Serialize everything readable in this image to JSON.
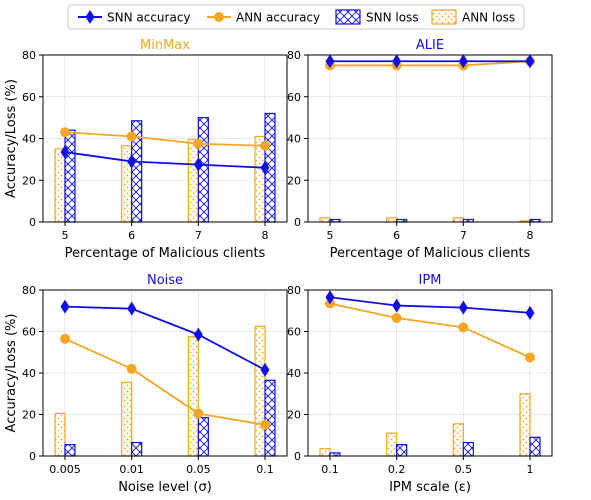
{
  "legend": {
    "snn_accuracy": "SNN accuracy",
    "ann_accuracy": "ANN accuracy",
    "snn_loss": "SNN loss",
    "ann_loss": "ANN loss"
  },
  "colors": {
    "snn": "#1010e6",
    "ann": "#f5a623"
  },
  "chart_data": [
    {
      "type": "bar",
      "title": "MinMax",
      "title_color": "#f5a623",
      "xlabel": "Percentage of Malicious clients",
      "ylabel": "Accuracy/Loss (%)",
      "categories": [
        "5",
        "6",
        "7",
        "8"
      ],
      "ylim": [
        0,
        80
      ],
      "yticks": [
        0,
        20,
        40,
        60,
        80
      ],
      "grid": true,
      "series": [
        {
          "name": "SNN accuracy",
          "kind": "line",
          "values": [
            33.5,
            29,
            27.5,
            26
          ]
        },
        {
          "name": "ANN accuracy",
          "kind": "line",
          "values": [
            43,
            41,
            37.5,
            36.5
          ]
        },
        {
          "name": "SNN loss",
          "kind": "bar",
          "values": [
            44,
            48.5,
            50,
            52
          ]
        },
        {
          "name": "ANN loss",
          "kind": "bar",
          "values": [
            35,
            36.5,
            39.5,
            41
          ]
        }
      ]
    },
    {
      "type": "bar",
      "title": "ALIE",
      "title_color": "#1010e6",
      "xlabel": "Percentage of Malicious clients",
      "ylabel": "",
      "categories": [
        "5",
        "6",
        "7",
        "8"
      ],
      "ylim": [
        0,
        80
      ],
      "yticks": [
        0,
        20,
        40,
        60,
        80
      ],
      "grid": true,
      "series": [
        {
          "name": "SNN accuracy",
          "kind": "line",
          "values": [
            77,
            77,
            77,
            77
          ]
        },
        {
          "name": "ANN accuracy",
          "kind": "line",
          "values": [
            75,
            75,
            75,
            77
          ]
        },
        {
          "name": "SNN loss",
          "kind": "bar",
          "values": [
            1.2,
            1.2,
            1.2,
            1.2
          ]
        },
        {
          "name": "ANN loss",
          "kind": "bar",
          "values": [
            2,
            2,
            2,
            0.5
          ]
        }
      ]
    },
    {
      "type": "bar",
      "title": "Noise",
      "title_color": "#1010e6",
      "xlabel": "Noise level (σ)",
      "ylabel": "Accuracy/Loss (%)",
      "categories": [
        "0.005",
        "0.01",
        "0.05",
        "0.1"
      ],
      "ylim": [
        0,
        80
      ],
      "yticks": [
        0,
        20,
        40,
        60,
        80
      ],
      "grid": true,
      "series": [
        {
          "name": "SNN accuracy",
          "kind": "line",
          "values": [
            72,
            71,
            58.5,
            41.5
          ]
        },
        {
          "name": "ANN accuracy",
          "kind": "line",
          "values": [
            56.5,
            42,
            20.5,
            15
          ]
        },
        {
          "name": "SNN loss",
          "kind": "bar",
          "values": [
            5.5,
            6.5,
            18.5,
            36.5
          ]
        },
        {
          "name": "ANN loss",
          "kind": "bar",
          "values": [
            20.5,
            35.5,
            57.5,
            62.5
          ]
        }
      ]
    },
    {
      "type": "bar",
      "title": "IPM",
      "title_color": "#1010e6",
      "xlabel": "IPM scale (ε)",
      "ylabel": "",
      "categories": [
        "0.1",
        "0.2",
        "0.5",
        "1"
      ],
      "ylim": [
        0,
        80
      ],
      "yticks": [
        0,
        20,
        40,
        60,
        80
      ],
      "grid": true,
      "series": [
        {
          "name": "SNN accuracy",
          "kind": "line",
          "values": [
            76.5,
            72.5,
            71.5,
            69
          ]
        },
        {
          "name": "ANN accuracy",
          "kind": "line",
          "values": [
            73.5,
            66.5,
            62,
            47.5
          ]
        },
        {
          "name": "SNN loss",
          "kind": "bar",
          "values": [
            1.5,
            5.5,
            6.5,
            9
          ]
        },
        {
          "name": "ANN loss",
          "kind": "bar",
          "values": [
            3.5,
            11,
            15.5,
            30
          ]
        }
      ]
    }
  ]
}
